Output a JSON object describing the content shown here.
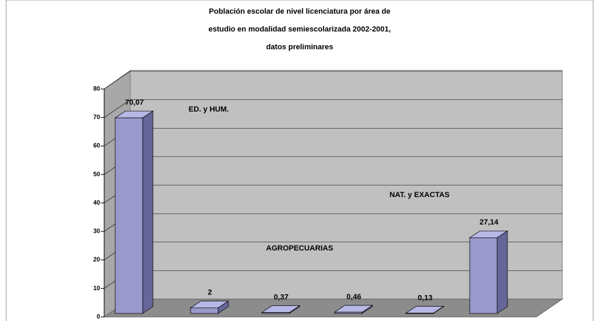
{
  "chart_data": {
    "type": "bar",
    "title": [
      "Población escolar de nivel licenciatura por área de",
      "estudio en modalidad semiescolarizada 2002-2001,",
      "datos preliminares"
    ],
    "categories": [
      null,
      null,
      null,
      null,
      null,
      null
    ],
    "values": [
      70.07,
      2,
      0.37,
      0.46,
      0.13,
      27.14
    ],
    "value_labels": [
      "70,07",
      "2",
      "0,37",
      "0,46",
      "0,13",
      "27,14"
    ],
    "annotations": [
      "ED. y HUM.",
      "AGROPECUARIAS",
      "NAT. y EXACTAS"
    ],
    "color": "#9999cc",
    "ylim": [
      0,
      80
    ],
    "yticks": [
      0,
      10,
      20,
      30,
      40,
      50,
      60,
      70,
      80
    ],
    "grid": true
  }
}
